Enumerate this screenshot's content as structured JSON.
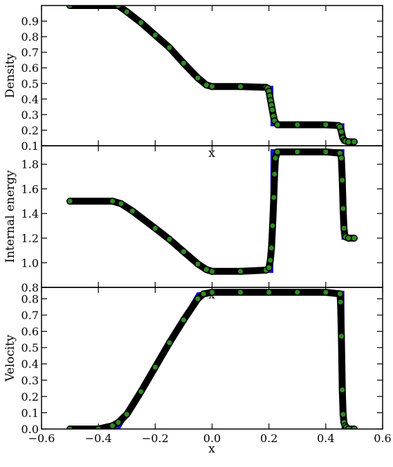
{
  "chart_data": [
    {
      "type": "line+scatter",
      "ylabel": "Density",
      "xlabel": "x",
      "xlim": [
        -0.6,
        0.6
      ],
      "ylim": [
        0.1,
        1.0
      ],
      "yticks": [
        0.1,
        0.2,
        0.3,
        0.4,
        0.5,
        0.6,
        0.7,
        0.8,
        0.9
      ],
      "ytick_labels": [
        "0.1",
        "0.2",
        "0.3",
        "0.4",
        "0.5",
        "0.6",
        "0.7",
        "0.8",
        "0.9"
      ],
      "series": [
        {
          "kind": "line",
          "color": "#1010e0",
          "x": [
            -0.5,
            -0.33,
            -0.3,
            -0.25,
            -0.2,
            -0.15,
            -0.1,
            -0.05,
            -0.02,
            0.0,
            0.1,
            0.2,
            0.21,
            0.211,
            0.45,
            0.46,
            0.461,
            0.5
          ],
          "y": [
            1.0,
            1.0,
            0.96,
            0.89,
            0.81,
            0.73,
            0.63,
            0.535,
            0.49,
            0.48,
            0.48,
            0.475,
            0.475,
            0.235,
            0.235,
            0.235,
            0.125,
            0.125
          ]
        },
        {
          "kind": "scatter",
          "color": "#2e8b22",
          "x": [
            -0.5,
            -0.33,
            -0.3,
            -0.25,
            -0.2,
            -0.15,
            -0.1,
            -0.05,
            -0.02,
            0.0,
            0.1,
            0.19,
            0.195,
            0.2,
            0.203,
            0.206,
            0.209,
            0.212,
            0.216,
            0.22,
            0.23,
            0.3,
            0.4,
            0.445,
            0.45,
            0.455,
            0.46,
            0.465,
            0.47,
            0.48,
            0.5
          ],
          "y": [
            1.0,
            1.0,
            0.96,
            0.89,
            0.81,
            0.73,
            0.63,
            0.535,
            0.49,
            0.48,
            0.48,
            0.475,
            0.47,
            0.45,
            0.42,
            0.39,
            0.36,
            0.33,
            0.29,
            0.26,
            0.235,
            0.235,
            0.235,
            0.23,
            0.22,
            0.19,
            0.15,
            0.135,
            0.13,
            0.125,
            0.125
          ]
        }
      ]
    },
    {
      "type": "line+scatter",
      "ylabel": "Internal energy",
      "xlabel": "x",
      "xlim": [
        -0.6,
        0.6
      ],
      "ylim": [
        0.8,
        1.95
      ],
      "yticks": [
        0.8,
        1.0,
        1.2,
        1.4,
        1.6,
        1.8
      ],
      "ytick_labels": [
        "0.8",
        "1.0",
        "1.2",
        "1.4",
        "1.6",
        "1.8"
      ],
      "series": [
        {
          "kind": "line",
          "color": "#1010e0",
          "x": [
            -0.5,
            -0.35,
            -0.32,
            -0.28,
            -0.2,
            -0.15,
            -0.1,
            -0.05,
            -0.02,
            0.0,
            0.1,
            0.21,
            0.211,
            0.45,
            0.46,
            0.461,
            0.5
          ],
          "y": [
            1.5,
            1.5,
            1.48,
            1.42,
            1.28,
            1.19,
            1.09,
            0.99,
            0.945,
            0.93,
            0.93,
            0.93,
            1.91,
            1.91,
            1.91,
            1.2,
            1.2
          ]
        },
        {
          "kind": "scatter",
          "color": "#2e8b22",
          "x": [
            -0.5,
            -0.35,
            -0.32,
            -0.28,
            -0.2,
            -0.15,
            -0.1,
            -0.05,
            -0.02,
            0.0,
            0.1,
            0.19,
            0.2,
            0.205,
            0.209,
            0.213,
            0.217,
            0.22,
            0.223,
            0.23,
            0.3,
            0.4,
            0.45,
            0.455,
            0.458,
            0.461,
            0.464,
            0.467,
            0.47,
            0.48,
            0.5
          ],
          "y": [
            1.5,
            1.5,
            1.48,
            1.42,
            1.28,
            1.19,
            1.09,
            0.99,
            0.945,
            0.93,
            0.93,
            0.94,
            0.96,
            1.02,
            1.12,
            1.3,
            1.53,
            1.72,
            1.85,
            1.9,
            1.9,
            1.9,
            1.89,
            1.85,
            1.67,
            1.44,
            1.28,
            1.22,
            1.21,
            1.2,
            1.2
          ]
        }
      ]
    },
    {
      "type": "line+scatter",
      "ylabel": "Velocity",
      "xlabel": "x",
      "xlim": [
        -0.6,
        0.6
      ],
      "ylim": [
        0.0,
        0.87
      ],
      "yticks": [
        0.0,
        0.1,
        0.2,
        0.3,
        0.4,
        0.5,
        0.6,
        0.7,
        0.8
      ],
      "ytick_labels": [
        "0.0",
        "0.1",
        "0.2",
        "0.3",
        "0.4",
        "0.5",
        "0.6",
        "0.7",
        "0.8"
      ],
      "xticks": [
        -0.6,
        -0.4,
        -0.2,
        0.0,
        0.2,
        0.4,
        0.6
      ],
      "xtick_labels": [
        "−0.6",
        "−0.4",
        "−0.2",
        "0.0",
        "0.2",
        "0.4",
        "0.6"
      ],
      "series": [
        {
          "kind": "line",
          "color": "#1010e0",
          "x": [
            -0.5,
            -0.33,
            -0.3,
            -0.25,
            -0.2,
            -0.15,
            -0.1,
            -0.05,
            0.0,
            0.2,
            0.45,
            0.46,
            0.461,
            0.5
          ],
          "y": [
            0.0,
            0.0,
            0.09,
            0.24,
            0.39,
            0.54,
            0.68,
            0.83,
            0.84,
            0.84,
            0.84,
            0.84,
            0.0,
            0.0
          ]
        },
        {
          "kind": "scatter",
          "color": "#2e8b22",
          "x": [
            -0.5,
            -0.4,
            -0.35,
            -0.33,
            -0.3,
            -0.25,
            -0.2,
            -0.15,
            -0.1,
            -0.05,
            -0.03,
            0.0,
            0.1,
            0.2,
            0.3,
            0.4,
            0.45,
            0.452,
            0.455,
            0.458,
            0.461,
            0.464,
            0.468,
            0.473,
            0.48,
            0.5
          ],
          "y": [
            0.0,
            0.0,
            0.02,
            0.04,
            0.09,
            0.23,
            0.38,
            0.53,
            0.67,
            0.8,
            0.83,
            0.84,
            0.84,
            0.84,
            0.84,
            0.84,
            0.83,
            0.78,
            0.57,
            0.24,
            0.09,
            0.04,
            0.02,
            0.01,
            0.0,
            0.0
          ]
        }
      ]
    }
  ]
}
